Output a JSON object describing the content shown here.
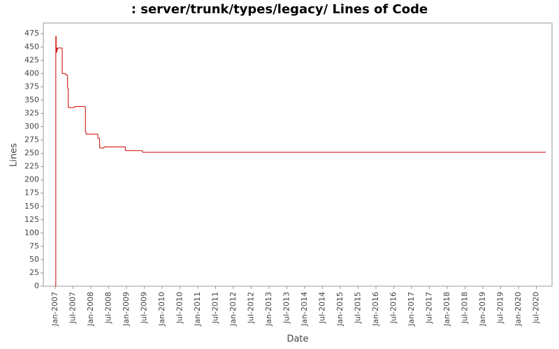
{
  "chart_data": {
    "type": "line",
    "title": ": server/trunk/types/legacy/ Lines of Code",
    "x_label": "Date",
    "y_label": "Lines",
    "step": true,
    "color": "#cc0000",
    "grid": false,
    "series": [
      {
        "name": "Lines",
        "color": "#cc0000",
        "x": [
          2007.0,
          2007.02,
          2007.03,
          2007.05,
          2007.06,
          2007.07,
          2007.2,
          2007.3,
          2007.35,
          2007.37,
          2007.55,
          2007.85,
          2007.87,
          2008.2,
          2008.25,
          2008.37,
          2008.97,
          2009.45,
          2020.75
        ],
        "values": [
          0,
          470,
          440,
          448,
          445,
          448,
          400,
          397,
          372,
          336,
          338,
          290,
          286,
          278,
          260,
          262,
          255,
          252,
          253
        ]
      }
    ],
    "xlim": [
      2006.67,
      2020.94
    ],
    "xticks": [
      {
        "value": 2007.0,
        "label": "Jan-2007"
      },
      {
        "value": 2007.5,
        "label": "Jul-2007"
      },
      {
        "value": 2008.0,
        "label": "Jan-2008"
      },
      {
        "value": 2008.5,
        "label": "Jul-2008"
      },
      {
        "value": 2009.0,
        "label": "Jan-2009"
      },
      {
        "value": 2009.5,
        "label": "Jul-2009"
      },
      {
        "value": 2010.0,
        "label": "Jan-2010"
      },
      {
        "value": 2010.5,
        "label": "Jul-2010"
      },
      {
        "value": 2011.0,
        "label": "Jan-2011"
      },
      {
        "value": 2011.5,
        "label": "Jul-2011"
      },
      {
        "value": 2012.0,
        "label": "Jan-2012"
      },
      {
        "value": 2012.5,
        "label": "Jul-2012"
      },
      {
        "value": 2013.0,
        "label": "Jan-2013"
      },
      {
        "value": 2013.5,
        "label": "Jul-2013"
      },
      {
        "value": 2014.0,
        "label": "Jan-2014"
      },
      {
        "value": 2014.5,
        "label": "Jul-2014"
      },
      {
        "value": 2015.0,
        "label": "Jan-2015"
      },
      {
        "value": 2015.5,
        "label": "Jul-2015"
      },
      {
        "value": 2016.0,
        "label": "Jan-2016"
      },
      {
        "value": 2016.5,
        "label": "Jul-2016"
      },
      {
        "value": 2017.0,
        "label": "Jan-2017"
      },
      {
        "value": 2017.5,
        "label": "Jul-2017"
      },
      {
        "value": 2018.0,
        "label": "Jan-2018"
      },
      {
        "value": 2018.5,
        "label": "Jul-2018"
      },
      {
        "value": 2019.0,
        "label": "Jan-2019"
      },
      {
        "value": 2019.5,
        "label": "Jul-2019"
      },
      {
        "value": 2020.0,
        "label": "Jan-2020"
      },
      {
        "value": 2020.5,
        "label": "Jul-2020"
      }
    ],
    "ylim": [
      0,
      495
    ],
    "yticks": [
      0,
      25,
      50,
      75,
      100,
      125,
      150,
      175,
      200,
      225,
      250,
      275,
      300,
      325,
      350,
      375,
      400,
      425,
      450,
      475
    ]
  }
}
